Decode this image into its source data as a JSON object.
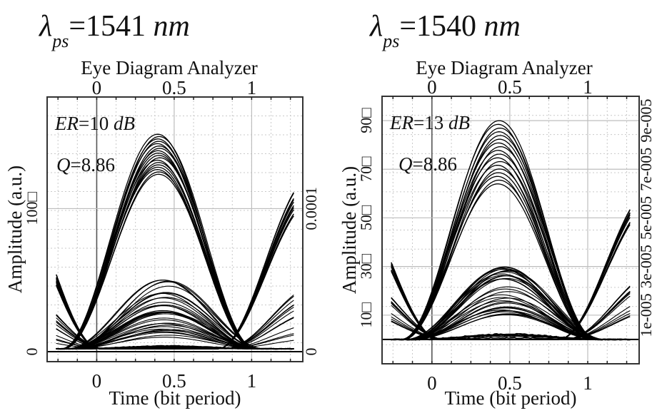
{
  "chart_data": [
    {
      "type": "line",
      "subtype": "eye-diagram",
      "heading": {
        "symbol": "λ",
        "subscript": "ps",
        "equals": "=1541",
        "unit": "nm"
      },
      "title": "Eye Diagram Analyzer",
      "xlabel": "Time (bit period)",
      "ylabel": "Amplitude (a.u.)",
      "xlim": [
        -0.32,
        1.33
      ],
      "ylim": [
        -7,
        178
      ],
      "x_ticks": [
        0,
        0.5,
        1
      ],
      "x_tick_labels": [
        "0",
        "0.5",
        "1"
      ],
      "top_x_ticks": [
        0,
        0.5,
        1
      ],
      "top_x_tick_labels": [
        "0",
        "0.5",
        "1"
      ],
      "y_ticks": [
        0,
        100
      ],
      "y_tick_labels": [
        "0",
        "100□"
      ],
      "right_y_ticks": [
        0,
        100
      ],
      "right_y_tick_labels": [
        "0",
        "0.0001"
      ],
      "grid": true,
      "annotations": [
        {
          "italic": "ER",
          "text": "=10 ",
          "unit": "dB"
        },
        {
          "italic": "Q",
          "text": "=8.86"
        }
      ],
      "eye": {
        "period": 1.0,
        "one_peak_x": 0.4,
        "one_level_range": [
          124,
          152
        ],
        "mid_level_range": [
          8,
          52
        ],
        "zero_level": 2,
        "crossing_level": 8,
        "traces_ones": 18,
        "traces_mid": 34,
        "traces_zero": 6
      }
    },
    {
      "type": "line",
      "subtype": "eye-diagram",
      "heading": {
        "symbol": "λ",
        "subscript": "ps",
        "equals": "=1540",
        "unit": "nm"
      },
      "title": "Eye Diagram Analyzer",
      "xlabel": "Time (bit period)",
      "ylabel": "Amplitude (a.u.)",
      "xlim": [
        -0.32,
        1.33
      ],
      "ylim": [
        -10,
        100
      ],
      "x_ticks": [
        0,
        0.5,
        1
      ],
      "x_tick_labels": [
        "0",
        "0.5",
        "1"
      ],
      "top_x_ticks": [
        0,
        0.5,
        1
      ],
      "top_x_tick_labels": [
        "0",
        "0.5",
        "1"
      ],
      "y_ticks": [
        10,
        30,
        50,
        70,
        90
      ],
      "y_tick_labels": [
        "10□",
        "30□",
        "50□",
        "70□",
        "90□"
      ],
      "right_y_ticks": [
        10,
        30,
        50,
        70,
        90
      ],
      "right_y_tick_labels": [
        "1e-005",
        "3e-005",
        "5e-005",
        "7e-005",
        "9e-005"
      ],
      "grid": true,
      "annotations": [
        {
          "italic": "ER",
          "text": "=13 ",
          "unit": "dB"
        },
        {
          "italic": "Q",
          "text": "=8.86"
        }
      ],
      "eye": {
        "period": 1.0,
        "one_peak_x": 0.43,
        "one_level_range": [
          64,
          90
        ],
        "mid_level_range": [
          10,
          30
        ],
        "zero_level": 0,
        "crossing_level": 3,
        "traces_ones": 18,
        "traces_mid": 34,
        "traces_zero": 6
      }
    }
  ]
}
